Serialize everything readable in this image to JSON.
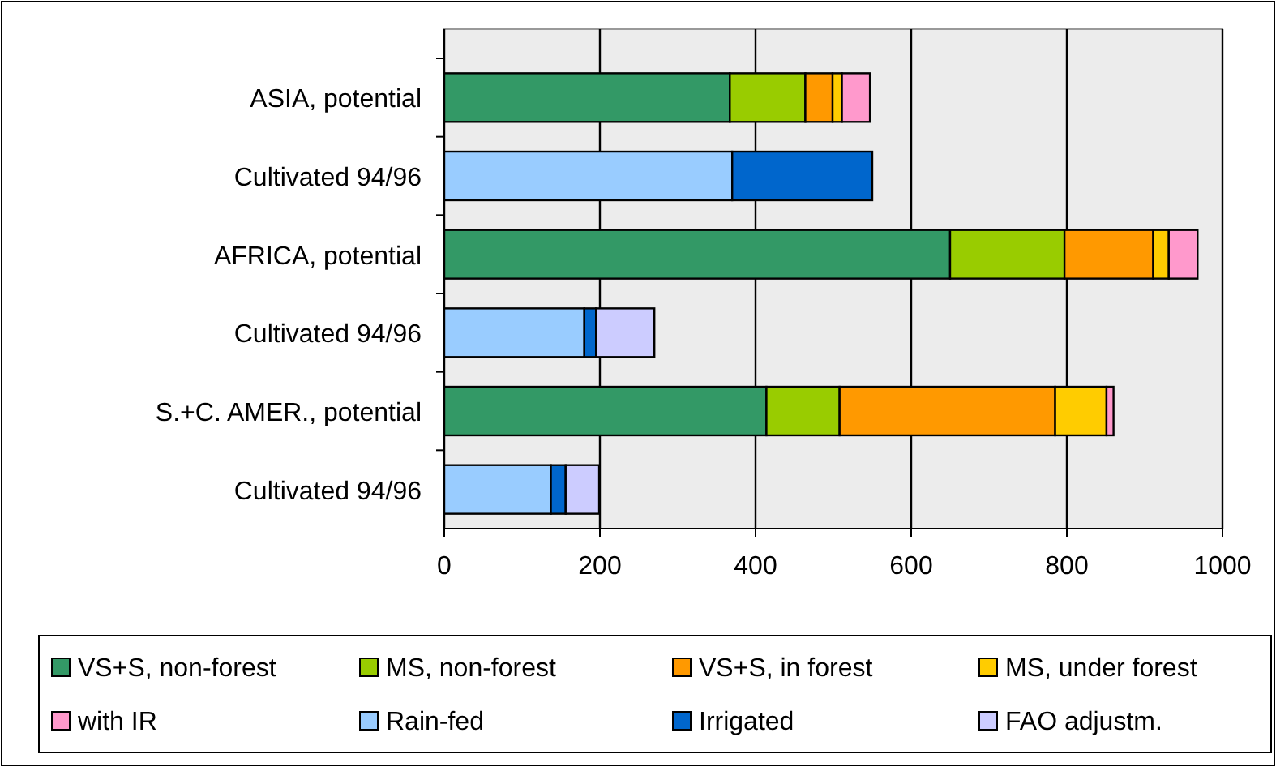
{
  "chart_data": {
    "type": "bar",
    "orientation": "horizontal",
    "stacked": true,
    "categories": [
      "ASIA, potential",
      "Cultivated 94/96",
      "AFRICA, potential",
      "Cultivated 94/96",
      "S.+C. AMER., potential",
      "Cultivated 94/96"
    ],
    "series": [
      {
        "name": "VS+S, non-forest",
        "color": "#339966",
        "values": [
          367,
          null,
          650,
          null,
          414,
          null
        ]
      },
      {
        "name": "MS, non-forest",
        "color": "#99cc00",
        "values": [
          97,
          null,
          147,
          null,
          94,
          null
        ]
      },
      {
        "name": "VS+S, in forest",
        "color": "#ff9900",
        "values": [
          35,
          null,
          114,
          null,
          277,
          null
        ]
      },
      {
        "name": "MS, under forest",
        "color": "#ffcc00",
        "values": [
          12,
          null,
          20,
          null,
          66,
          null
        ]
      },
      {
        "name": "with IR",
        "color": "#ff99cc",
        "values": [
          36,
          null,
          37,
          null,
          9,
          null
        ]
      },
      {
        "name": "Rain-fed",
        "color": "#99ccff",
        "values": [
          null,
          370,
          null,
          180,
          null,
          137
        ]
      },
      {
        "name": "Irrigated",
        "color": "#0066cc",
        "values": [
          null,
          180,
          null,
          15,
          null,
          19
        ]
      },
      {
        "name": "FAO adjustm.",
        "color": "#ccccff",
        "values": [
          null,
          null,
          null,
          75,
          null,
          43
        ]
      }
    ],
    "xlim": [
      0,
      1000
    ],
    "xticks": [
      0,
      200,
      400,
      600,
      800,
      1000
    ],
    "grid": "x",
    "legend": "bottom"
  }
}
